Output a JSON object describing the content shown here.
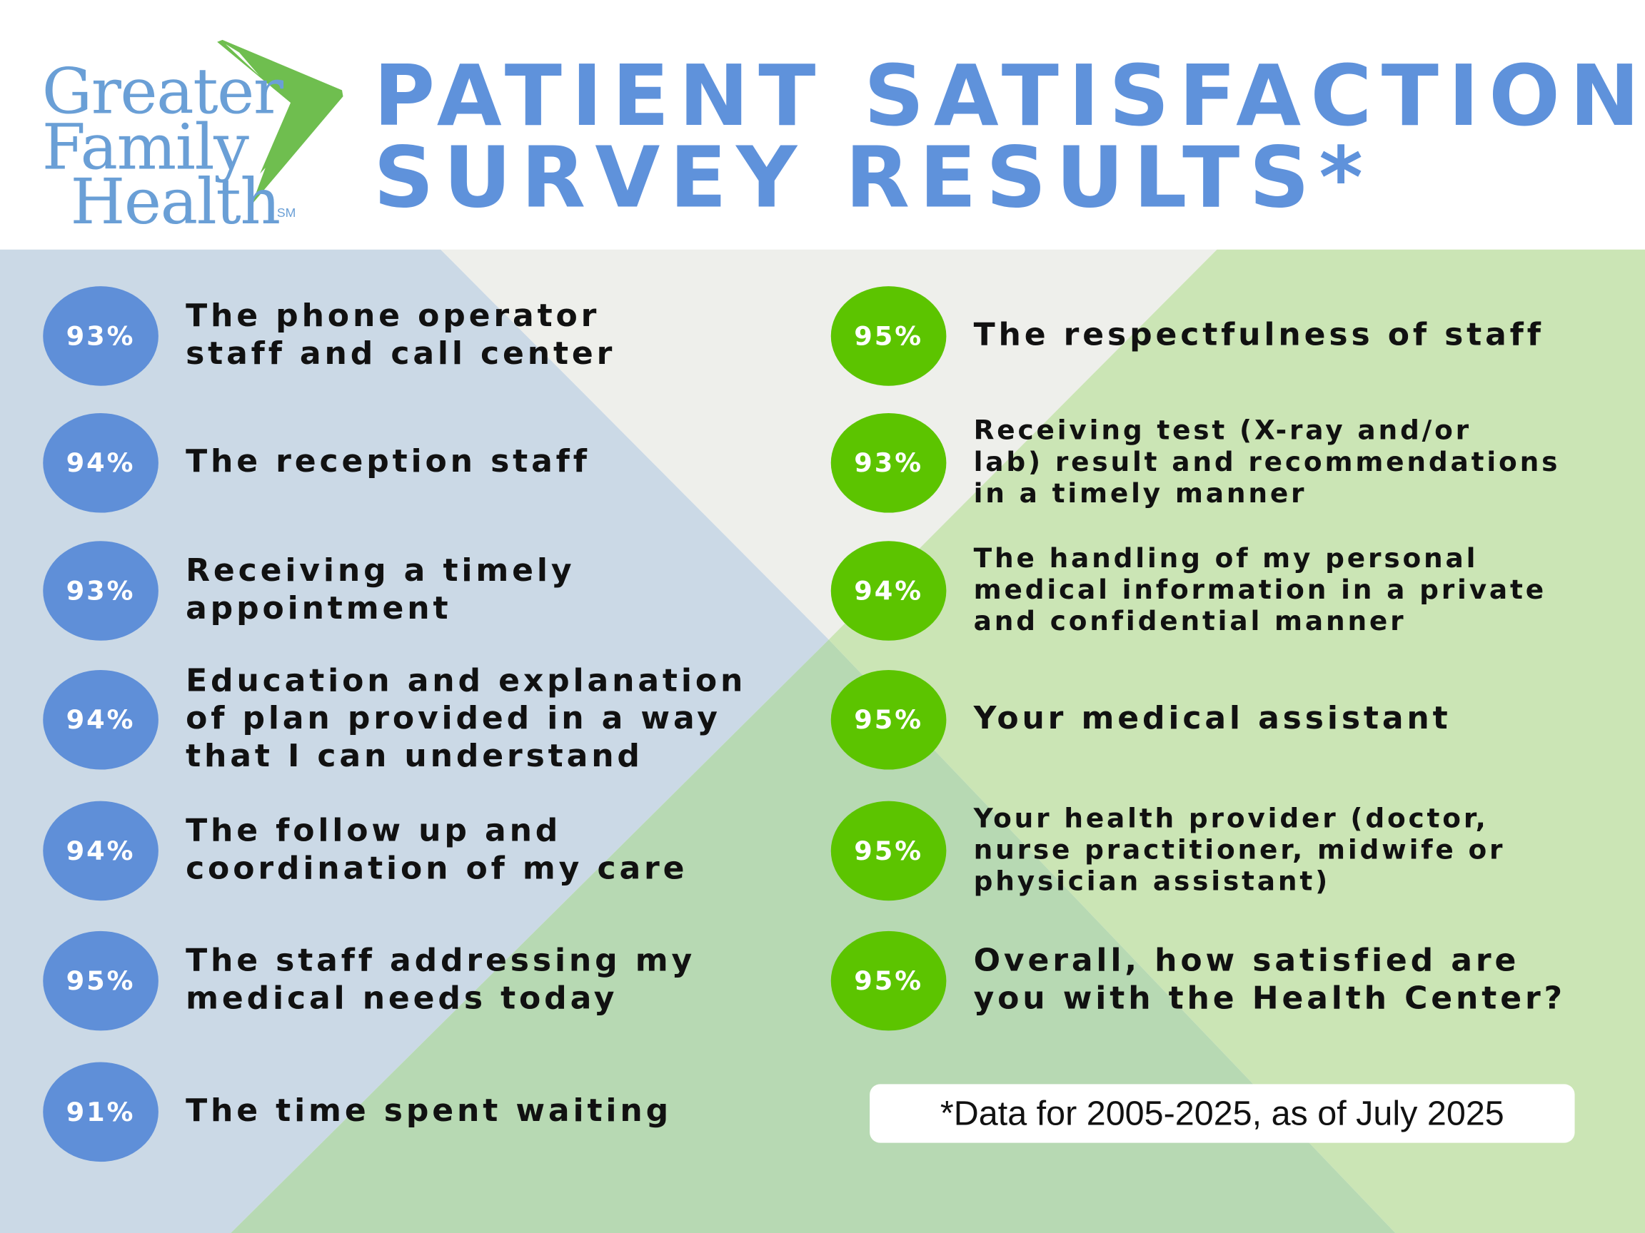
{
  "logo": {
    "line1": "Greater",
    "line2": "Family",
    "line3": "Health",
    "mark": "SM",
    "colors": {
      "text": "#6a9fd6",
      "chevron": "#6fbe4f"
    }
  },
  "title": {
    "line1": "PATIENT SATISFACTION",
    "line2": "SURVEY RESULTS*"
  },
  "colors": {
    "blue_badge": "#5f8fd8",
    "green_badge": "#5cc400",
    "title": "#5f92db"
  },
  "left_items": [
    {
      "percent": "93%",
      "label": "The phone operator\nstaff and call center"
    },
    {
      "percent": "94%",
      "label": "The reception staff"
    },
    {
      "percent": "93%",
      "label": "Receiving a timely\nappointment"
    },
    {
      "percent": "94%",
      "label": "Education and explanation\nof plan provided in a way\nthat I can understand"
    },
    {
      "percent": "94%",
      "label": "The follow up and\ncoordination of my care"
    },
    {
      "percent": "95%",
      "label": "The staff addressing my\nmedical needs today"
    },
    {
      "percent": "91%",
      "label": "The time spent waiting"
    }
  ],
  "right_items": [
    {
      "percent": "95%",
      "label": "The respectfulness of staff"
    },
    {
      "percent": "93%",
      "label": "Receiving test (X-ray and/or\nlab) result and recommendations\nin a timely manner"
    },
    {
      "percent": "94%",
      "label": "The handling of my personal\nmedical information in a private\nand confidential manner"
    },
    {
      "percent": "95%",
      "label": "Your medical assistant"
    },
    {
      "percent": "95%",
      "label": "Your health provider (doctor,\nnurse practitioner, midwife or\nphysician assistant)"
    },
    {
      "percent": "95%",
      "label": "Overall, how satisfied are\nyou with the Health Center?"
    }
  ],
  "footnote": "*Data for 2005-2025, as of July 2025"
}
